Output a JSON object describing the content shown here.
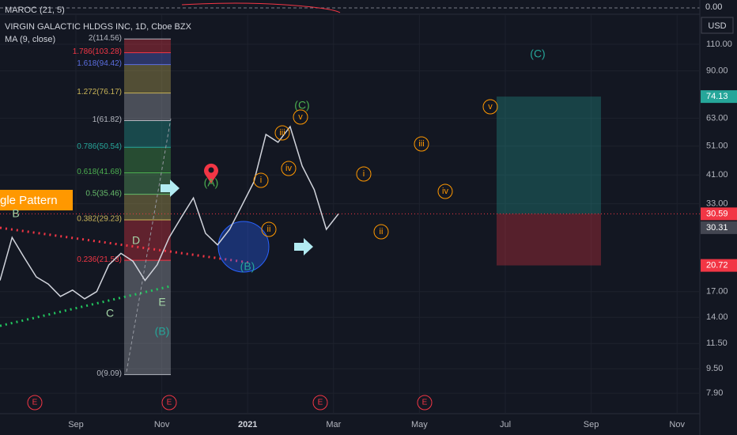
{
  "header": {
    "indicator": "MAROC (21, 5)",
    "indicator_value": "0.00",
    "symbol": "VIRGIN GALACTIC HLDGS INC, 1D, Cboe BZX",
    "ma": "MA (9, close)",
    "currency": "USD",
    "pattern": "gle Pattern"
  },
  "chart_data": {
    "type": "line",
    "log_scale": true,
    "grid": true,
    "series": [
      {
        "color": "#d1d4dc",
        "values": [
          18.5,
          25.6,
          22,
          19,
          18,
          16.4,
          17.2,
          16.1,
          17,
          20.8,
          22.7,
          21.4,
          18.5,
          20.8,
          25.6,
          29.8,
          34.5,
          26.4,
          24.2,
          27.2,
          32.5,
          38.9,
          55.7,
          52.5,
          59.1,
          43.9,
          36.7,
          27.2,
          30.59
        ]
      }
    ],
    "ylim": [
      6.49,
      153.7
    ],
    "yticks": [
      {
        "value": 110,
        "label": "110.00"
      },
      {
        "value": 90,
        "label": "90.00"
      },
      {
        "value": 63,
        "label": "63.00"
      },
      {
        "value": 51,
        "label": "51.00"
      },
      {
        "value": 41,
        "label": "41.00"
      },
      {
        "value": 33,
        "label": "33.00"
      },
      {
        "value": 17,
        "label": "17.00"
      },
      {
        "value": 14,
        "label": "14.00"
      },
      {
        "value": 11.5,
        "label": "11.50"
      },
      {
        "value": 9.5,
        "label": "9.50"
      },
      {
        "value": 7.9,
        "label": "7.90"
      }
    ],
    "xticks": [
      "Sep",
      "Nov",
      "2021",
      "Mar",
      "May",
      "Jul",
      "Sep",
      "Nov"
    ],
    "fib_levels": [
      {
        "label": "2(114.56)",
        "value": 114.56,
        "color": "#b2b5be"
      },
      {
        "label": "1.786(103.28)",
        "value": 103.28,
        "color": "#f23645"
      },
      {
        "label": "1.618(94.42)",
        "value": 94.42,
        "color": "#5b6ee1"
      },
      {
        "label": "1.272(76.17)",
        "value": 76.17,
        "color": "#c9b458"
      },
      {
        "label": "1(61.82)",
        "value": 61.82,
        "color": "#b2b5be"
      },
      {
        "label": "0.786(50.54)",
        "value": 50.54,
        "color": "#26a69a"
      },
      {
        "label": "0.618(41.68)",
        "value": 41.68,
        "color": "#4caf50"
      },
      {
        "label": "0.5(35.46)",
        "value": 35.46,
        "color": "#66bb6a"
      },
      {
        "label": "0.382(29.23)",
        "value": 29.23,
        "color": "#c9b458"
      },
      {
        "label": "0.236(21.53)",
        "value": 21.53,
        "color": "#f23645"
      },
      {
        "label": "0(9.09)",
        "value": 9.09,
        "color": "#b2b5be"
      }
    ],
    "price_labels": [
      {
        "label": "74.13",
        "value": 74.13,
        "color": "#26a69a"
      },
      {
        "label": "30.59",
        "value": 30.59,
        "color": "#f23645"
      },
      {
        "label": "30.31",
        "value": 30.31,
        "color": "#434651"
      },
      {
        "label": "20.72",
        "value": 20.72,
        "color": "#f23645"
      }
    ],
    "wave_labels": [
      "B",
      "C",
      "D",
      "E",
      "(B)",
      "(A)",
      "(B)",
      "(C)",
      "i",
      "ii",
      "iii",
      "iv",
      "v",
      "i",
      "ii",
      "iii",
      "iv",
      "v",
      "(C)"
    ],
    "event_markers": [
      "E",
      "E",
      "E",
      "E"
    ]
  }
}
